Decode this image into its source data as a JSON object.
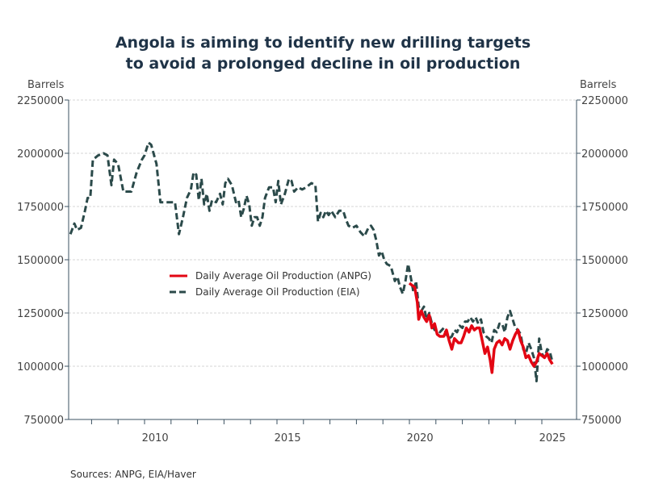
{
  "chart_data": {
    "type": "line",
    "title": "Angola is aiming to identify new drilling targets to avoid a prolonged decline in oil production",
    "title_lines": [
      "Angola is aiming to identify new drilling targets",
      "to avoid a prolonged decline in oil production"
    ],
    "xlabel": "",
    "ylabel_left": "Barrels",
    "ylabel_right": "Barrels",
    "ylim": [
      750000,
      2250000
    ],
    "xlim": [
      2007.2,
      2025.5
    ],
    "yticks": [
      750000,
      1000000,
      1250000,
      1500000,
      1750000,
      2000000,
      2250000
    ],
    "ytick_labels": [
      "750000",
      "1000000",
      "1250000",
      "1500000",
      "1750000",
      "2000000",
      "2250000"
    ],
    "xtick_labels": [
      {
        "year": 2010,
        "label": "2010"
      },
      {
        "year": 2015,
        "label": "2015"
      },
      {
        "year": 2020,
        "label": "2020"
      },
      {
        "year": 2025,
        "label": "2025"
      }
    ],
    "grid": true,
    "legend_position": "center-left",
    "series": [
      {
        "name": "Daily Average Oil Production (ANPG)",
        "color": "#e30613",
        "style": "solid",
        "points": [
          [
            2020.0,
            1390000
          ],
          [
            2020.1,
            1380000
          ],
          [
            2020.2,
            1370000
          ],
          [
            2020.3,
            1300000
          ],
          [
            2020.35,
            1220000
          ],
          [
            2020.45,
            1260000
          ],
          [
            2020.55,
            1230000
          ],
          [
            2020.65,
            1210000
          ],
          [
            2020.75,
            1240000
          ],
          [
            2020.85,
            1180000
          ],
          [
            2020.95,
            1200000
          ],
          [
            2021.05,
            1150000
          ],
          [
            2021.15,
            1140000
          ],
          [
            2021.3,
            1140000
          ],
          [
            2021.4,
            1170000
          ],
          [
            2021.5,
            1120000
          ],
          [
            2021.6,
            1080000
          ],
          [
            2021.7,
            1130000
          ],
          [
            2021.85,
            1110000
          ],
          [
            2021.95,
            1110000
          ],
          [
            2022.05,
            1140000
          ],
          [
            2022.15,
            1180000
          ],
          [
            2022.25,
            1160000
          ],
          [
            2022.35,
            1190000
          ],
          [
            2022.45,
            1170000
          ],
          [
            2022.55,
            1180000
          ],
          [
            2022.65,
            1180000
          ],
          [
            2022.75,
            1120000
          ],
          [
            2022.85,
            1060000
          ],
          [
            2022.95,
            1090000
          ],
          [
            2023.05,
            1030000
          ],
          [
            2023.12,
            970000
          ],
          [
            2023.2,
            1080000
          ],
          [
            2023.3,
            1110000
          ],
          [
            2023.4,
            1120000
          ],
          [
            2023.5,
            1100000
          ],
          [
            2023.6,
            1130000
          ],
          [
            2023.7,
            1120000
          ],
          [
            2023.8,
            1080000
          ],
          [
            2023.9,
            1120000
          ],
          [
            2024.0,
            1150000
          ],
          [
            2024.1,
            1170000
          ],
          [
            2024.2,
            1120000
          ],
          [
            2024.3,
            1090000
          ],
          [
            2024.4,
            1040000
          ],
          [
            2024.5,
            1050000
          ],
          [
            2024.6,
            1020000
          ],
          [
            2024.7,
            1000000
          ],
          [
            2024.8,
            1020000
          ],
          [
            2024.9,
            1060000
          ],
          [
            2025.0,
            1050000
          ],
          [
            2025.1,
            1040000
          ],
          [
            2025.2,
            1060000
          ],
          [
            2025.3,
            1030000
          ],
          [
            2025.4,
            1010000
          ]
        ]
      },
      {
        "name": "Daily Average Oil Production (EIA)",
        "color": "#2b4a4a",
        "style": "dashed",
        "points": [
          [
            2007.2,
            1620000
          ],
          [
            2007.35,
            1670000
          ],
          [
            2007.45,
            1640000
          ],
          [
            2007.6,
            1650000
          ],
          [
            2007.75,
            1730000
          ],
          [
            2007.85,
            1790000
          ],
          [
            2007.95,
            1790000
          ],
          [
            2008.05,
            1970000
          ],
          [
            2008.25,
            1990000
          ],
          [
            2008.45,
            2000000
          ],
          [
            2008.6,
            1990000
          ],
          [
            2008.75,
            1850000
          ],
          [
            2008.85,
            1970000
          ],
          [
            2009.0,
            1950000
          ],
          [
            2009.2,
            1820000
          ],
          [
            2009.5,
            1820000
          ],
          [
            2009.7,
            1910000
          ],
          [
            2009.9,
            1970000
          ],
          [
            2010.0,
            1990000
          ],
          [
            2010.15,
            2050000
          ],
          [
            2010.25,
            2040000
          ],
          [
            2010.45,
            1950000
          ],
          [
            2010.6,
            1770000
          ],
          [
            2011.0,
            1770000
          ],
          [
            2011.15,
            1770000
          ],
          [
            2011.3,
            1620000
          ],
          [
            2011.45,
            1700000
          ],
          [
            2011.6,
            1790000
          ],
          [
            2011.75,
            1830000
          ],
          [
            2011.85,
            1910000
          ],
          [
            2011.95,
            1900000
          ],
          [
            2012.05,
            1780000
          ],
          [
            2012.15,
            1880000
          ],
          [
            2012.25,
            1760000
          ],
          [
            2012.35,
            1810000
          ],
          [
            2012.45,
            1730000
          ],
          [
            2012.55,
            1780000
          ],
          [
            2012.7,
            1770000
          ],
          [
            2012.85,
            1810000
          ],
          [
            2012.95,
            1760000
          ],
          [
            2013.05,
            1860000
          ],
          [
            2013.15,
            1880000
          ],
          [
            2013.3,
            1850000
          ],
          [
            2013.45,
            1770000
          ],
          [
            2013.55,
            1780000
          ],
          [
            2013.65,
            1700000
          ],
          [
            2013.75,
            1740000
          ],
          [
            2013.85,
            1800000
          ],
          [
            2013.95,
            1760000
          ],
          [
            2014.05,
            1660000
          ],
          [
            2014.15,
            1700000
          ],
          [
            2014.25,
            1700000
          ],
          [
            2014.35,
            1660000
          ],
          [
            2014.45,
            1700000
          ],
          [
            2014.55,
            1790000
          ],
          [
            2014.7,
            1840000
          ],
          [
            2014.85,
            1840000
          ],
          [
            2014.95,
            1770000
          ],
          [
            2015.05,
            1870000
          ],
          [
            2015.15,
            1760000
          ],
          [
            2015.3,
            1810000
          ],
          [
            2015.45,
            1880000
          ],
          [
            2015.55,
            1870000
          ],
          [
            2015.65,
            1820000
          ],
          [
            2015.8,
            1840000
          ],
          [
            2015.95,
            1830000
          ],
          [
            2016.1,
            1840000
          ],
          [
            2016.3,
            1860000
          ],
          [
            2016.45,
            1850000
          ],
          [
            2016.55,
            1680000
          ],
          [
            2016.65,
            1720000
          ],
          [
            2016.75,
            1700000
          ],
          [
            2016.85,
            1730000
          ],
          [
            2016.95,
            1710000
          ],
          [
            2017.05,
            1730000
          ],
          [
            2017.2,
            1700000
          ],
          [
            2017.35,
            1730000
          ],
          [
            2017.5,
            1730000
          ],
          [
            2017.6,
            1690000
          ],
          [
            2017.7,
            1660000
          ],
          [
            2017.85,
            1650000
          ],
          [
            2018.0,
            1660000
          ],
          [
            2018.15,
            1630000
          ],
          [
            2018.3,
            1610000
          ],
          [
            2018.45,
            1650000
          ],
          [
            2018.55,
            1660000
          ],
          [
            2018.65,
            1640000
          ],
          [
            2018.75,
            1590000
          ],
          [
            2018.85,
            1520000
          ],
          [
            2018.95,
            1540000
          ],
          [
            2019.05,
            1500000
          ],
          [
            2019.15,
            1480000
          ],
          [
            2019.3,
            1470000
          ],
          [
            2019.45,
            1400000
          ],
          [
            2019.55,
            1420000
          ],
          [
            2019.65,
            1370000
          ],
          [
            2019.75,
            1340000
          ],
          [
            2019.85,
            1400000
          ],
          [
            2019.95,
            1480000
          ],
          [
            2020.05,
            1420000
          ],
          [
            2020.15,
            1350000
          ],
          [
            2020.25,
            1400000
          ],
          [
            2020.35,
            1280000
          ],
          [
            2020.45,
            1260000
          ],
          [
            2020.55,
            1280000
          ],
          [
            2020.65,
            1220000
          ],
          [
            2020.75,
            1250000
          ],
          [
            2020.85,
            1200000
          ],
          [
            2020.95,
            1170000
          ],
          [
            2021.05,
            1170000
          ],
          [
            2021.15,
            1160000
          ],
          [
            2021.3,
            1180000
          ],
          [
            2021.4,
            1150000
          ],
          [
            2021.5,
            1130000
          ],
          [
            2021.6,
            1140000
          ],
          [
            2021.7,
            1170000
          ],
          [
            2021.8,
            1160000
          ],
          [
            2021.9,
            1190000
          ],
          [
            2022.0,
            1180000
          ],
          [
            2022.1,
            1210000
          ],
          [
            2022.2,
            1210000
          ],
          [
            2022.3,
            1230000
          ],
          [
            2022.4,
            1210000
          ],
          [
            2022.5,
            1230000
          ],
          [
            2022.6,
            1200000
          ],
          [
            2022.7,
            1220000
          ],
          [
            2022.8,
            1160000
          ],
          [
            2022.9,
            1140000
          ],
          [
            2023.0,
            1130000
          ],
          [
            2023.1,
            1110000
          ],
          [
            2023.2,
            1170000
          ],
          [
            2023.3,
            1160000
          ],
          [
            2023.4,
            1200000
          ],
          [
            2023.5,
            1200000
          ],
          [
            2023.6,
            1160000
          ],
          [
            2023.7,
            1230000
          ],
          [
            2023.8,
            1260000
          ],
          [
            2023.9,
            1220000
          ],
          [
            2024.0,
            1180000
          ],
          [
            2024.1,
            1170000
          ],
          [
            2024.2,
            1150000
          ],
          [
            2024.3,
            1080000
          ],
          [
            2024.4,
            1060000
          ],
          [
            2024.5,
            1110000
          ],
          [
            2024.6,
            1080000
          ],
          [
            2024.7,
            1040000
          ],
          [
            2024.8,
            930000
          ],
          [
            2024.9,
            1130000
          ],
          [
            2025.0,
            1060000
          ],
          [
            2025.1,
            1040000
          ],
          [
            2025.2,
            1080000
          ],
          [
            2025.3,
            1070000
          ],
          [
            2025.4,
            1020000
          ]
        ]
      }
    ]
  },
  "source": "Sources:  ANPG, EIA/Haver"
}
